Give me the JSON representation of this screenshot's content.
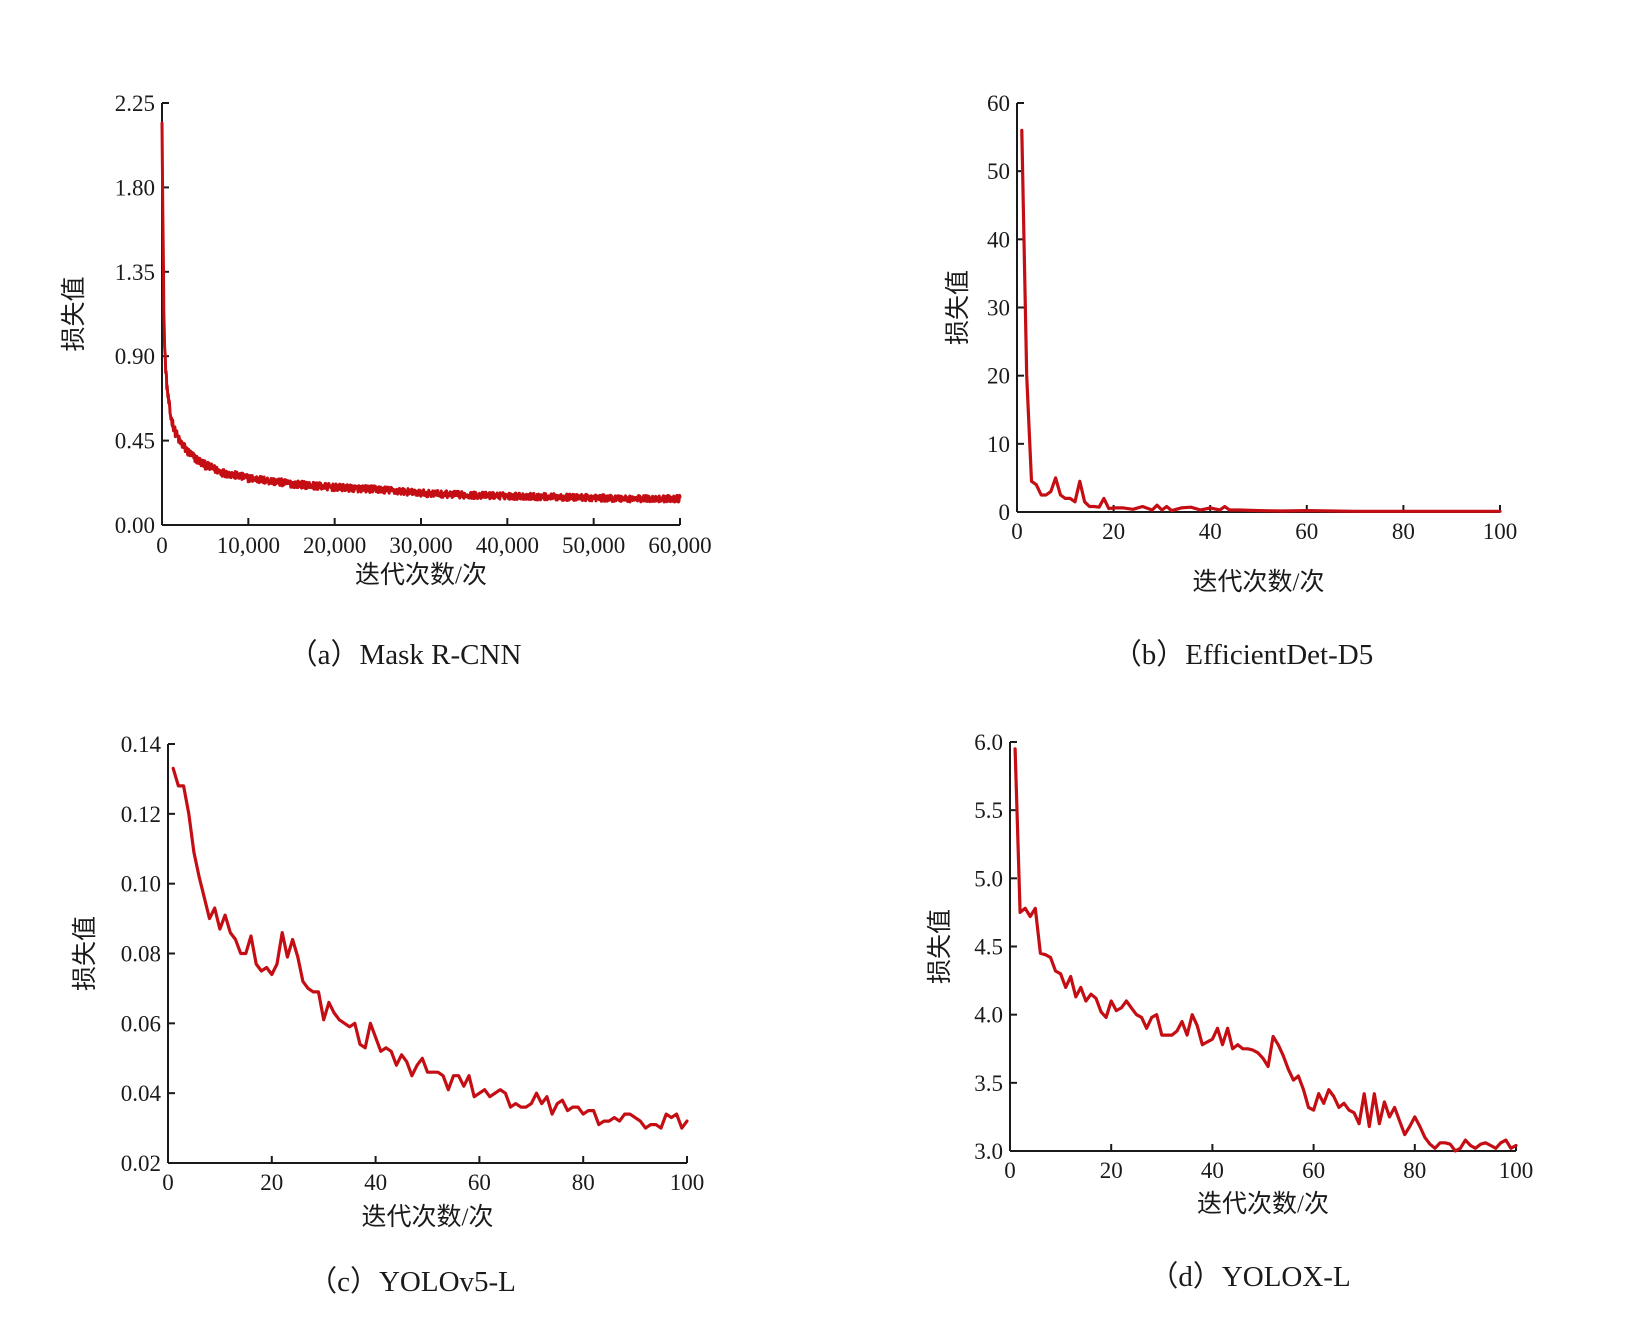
{
  "chart_data": [
    {
      "type": "line",
      "caption": "（a）Mask R-CNN",
      "xlabel": "迭代次数/次",
      "ylabel": "损失值",
      "xlim": [
        0,
        60000
      ],
      "ylim": [
        0,
        2.25
      ],
      "xticks": [
        0,
        10000,
        20000,
        30000,
        40000,
        50000,
        60000
      ],
      "xtick_labels": [
        "0",
        "10,000",
        "20,000",
        "30,000",
        "40,000",
        "50,000",
        "60,000"
      ],
      "yticks": [
        0,
        0.45,
        0.9,
        1.35,
        1.8,
        2.25
      ],
      "ytick_labels": [
        "0.00",
        "0.45",
        "0.90",
        "1.35",
        "1.80",
        "2.25"
      ],
      "line_color": "#c40e14",
      "noise": 0.025,
      "series": [
        {
          "x": [
            0,
            100,
            200,
            300,
            500,
            700,
            1000,
            1500,
            2000,
            3000,
            4000,
            5000,
            7000,
            10000,
            15000,
            20000,
            25000,
            30000,
            35000,
            40000,
            45000,
            50000,
            55000,
            60000
          ],
          "values": [
            2.2,
            1.65,
            1.2,
            0.95,
            0.78,
            0.68,
            0.58,
            0.5,
            0.45,
            0.39,
            0.35,
            0.32,
            0.28,
            0.25,
            0.22,
            0.2,
            0.19,
            0.17,
            0.16,
            0.155,
            0.15,
            0.145,
            0.14,
            0.14
          ]
        }
      ]
    },
    {
      "type": "line",
      "caption": "（b）EfficientDet-D5",
      "xlabel": "迭代次数/次",
      "ylabel": "损失值",
      "xlim": [
        0,
        100
      ],
      "ylim": [
        0,
        60
      ],
      "xticks": [
        0,
        20,
        40,
        60,
        80,
        100
      ],
      "xtick_labels": [
        "0",
        "20",
        "40",
        "60",
        "80",
        "100"
      ],
      "yticks": [
        0,
        10,
        20,
        30,
        40,
        50,
        60
      ],
      "ytick_labels": [
        "0",
        "10",
        "20",
        "30",
        "40",
        "50",
        "60"
      ],
      "line_color": "#c40e14",
      "noise": 0,
      "series": [
        {
          "x": [
            1,
            2,
            3,
            4,
            5,
            6,
            7,
            8,
            9,
            10,
            11,
            12,
            13,
            14,
            15,
            16,
            17,
            18,
            19,
            20,
            22,
            24,
            26,
            28,
            29,
            30,
            31,
            32,
            34,
            36,
            38,
            40,
            42,
            43,
            44,
            46,
            50,
            55,
            60,
            70,
            80,
            90,
            100
          ],
          "values": [
            56,
            20,
            4.5,
            4.0,
            2.5,
            2.5,
            3.0,
            5.0,
            2.5,
            2.0,
            2.0,
            1.5,
            4.5,
            1.5,
            0.8,
            0.8,
            0.7,
            2.0,
            0.5,
            0.6,
            0.6,
            0.4,
            0.8,
            0.3,
            1.0,
            0.3,
            0.8,
            0.2,
            0.6,
            0.7,
            0.3,
            0.6,
            0.3,
            0.8,
            0.3,
            0.3,
            0.2,
            0.15,
            0.2,
            0.1,
            0.1,
            0.1,
            0.1
          ]
        }
      ]
    },
    {
      "type": "line",
      "caption": "（c）YOLOv5-L",
      "xlabel": "迭代次数/次",
      "ylabel": "损失值",
      "xlim": [
        0,
        100
      ],
      "ylim": [
        0.02,
        0.14
      ],
      "xticks": [
        0,
        20,
        40,
        60,
        80,
        100
      ],
      "xtick_labels": [
        "0",
        "20",
        "40",
        "60",
        "80",
        "100"
      ],
      "yticks": [
        0.02,
        0.04,
        0.06,
        0.08,
        0.1,
        0.12,
        0.14
      ],
      "ytick_labels": [
        "0.02",
        "0.04",
        "0.06",
        "0.08",
        "0.10",
        "0.12",
        "0.14"
      ],
      "line_color": "#c40e14",
      "noise": 0,
      "series": [
        {
          "x": [
            1,
            2,
            3,
            4,
            5,
            6,
            7,
            8,
            9,
            10,
            11,
            12,
            13,
            14,
            15,
            16,
            17,
            18,
            19,
            20,
            21,
            22,
            23,
            24,
            25,
            26,
            27,
            28,
            29,
            30,
            31,
            32,
            33,
            34,
            35,
            36,
            37,
            38,
            39,
            40,
            41,
            42,
            43,
            44,
            45,
            46,
            47,
            48,
            49,
            50,
            51,
            52,
            53,
            54,
            55,
            56,
            57,
            58,
            59,
            60,
            61,
            62,
            63,
            64,
            65,
            66,
            67,
            68,
            69,
            70,
            71,
            72,
            73,
            74,
            75,
            76,
            77,
            78,
            79,
            80,
            81,
            82,
            83,
            84,
            85,
            86,
            87,
            88,
            89,
            90,
            91,
            92,
            93,
            94,
            95,
            96,
            97,
            98,
            99,
            100
          ],
          "values": [
            0.133,
            0.128,
            0.128,
            0.12,
            0.109,
            0.102,
            0.096,
            0.09,
            0.093,
            0.087,
            0.091,
            0.086,
            0.084,
            0.08,
            0.08,
            0.085,
            0.077,
            0.075,
            0.076,
            0.074,
            0.077,
            0.086,
            0.079,
            0.084,
            0.079,
            0.072,
            0.07,
            0.069,
            0.069,
            0.061,
            0.066,
            0.063,
            0.061,
            0.06,
            0.059,
            0.06,
            0.054,
            0.053,
            0.06,
            0.056,
            0.052,
            0.053,
            0.052,
            0.048,
            0.051,
            0.049,
            0.045,
            0.048,
            0.05,
            0.046,
            0.046,
            0.046,
            0.045,
            0.041,
            0.045,
            0.045,
            0.042,
            0.045,
            0.039,
            0.04,
            0.041,
            0.039,
            0.04,
            0.041,
            0.04,
            0.036,
            0.037,
            0.036,
            0.036,
            0.037,
            0.04,
            0.037,
            0.039,
            0.034,
            0.037,
            0.038,
            0.035,
            0.036,
            0.036,
            0.034,
            0.035,
            0.035,
            0.031,
            0.032,
            0.032,
            0.033,
            0.032,
            0.034,
            0.034,
            0.033,
            0.032,
            0.03,
            0.031,
            0.031,
            0.03,
            0.034,
            0.033,
            0.034,
            0.03,
            0.032
          ]
        }
      ]
    },
    {
      "type": "line",
      "caption": "（d）YOLOX-L",
      "xlabel": "迭代次数/次",
      "ylabel": "损失值",
      "xlim": [
        0,
        100
      ],
      "ylim": [
        3.0,
        6.0
      ],
      "xticks": [
        0,
        20,
        40,
        60,
        80,
        100
      ],
      "xtick_labels": [
        "0",
        "20",
        "40",
        "60",
        "80",
        "100"
      ],
      "yticks": [
        3.0,
        3.5,
        4.0,
        4.5,
        5.0,
        5.5,
        6.0
      ],
      "ytick_labels": [
        "3.0",
        "3.5",
        "4.0",
        "4.5",
        "5.0",
        "5.5",
        "6.0"
      ],
      "line_color": "#c40e14",
      "noise": 0,
      "series": [
        {
          "x": [
            1,
            2,
            3,
            4,
            5,
            6,
            7,
            8,
            9,
            10,
            11,
            12,
            13,
            14,
            15,
            16,
            17,
            18,
            19,
            20,
            21,
            22,
            23,
            24,
            25,
            26,
            27,
            28,
            29,
            30,
            31,
            32,
            33,
            34,
            35,
            36,
            37,
            38,
            39,
            40,
            41,
            42,
            43,
            44,
            45,
            46,
            47,
            48,
            49,
            50,
            51,
            52,
            53,
            54,
            55,
            56,
            57,
            58,
            59,
            60,
            61,
            62,
            63,
            64,
            65,
            66,
            67,
            68,
            69,
            70,
            71,
            72,
            73,
            74,
            75,
            76,
            77,
            78,
            79,
            80,
            81,
            82,
            83,
            84,
            85,
            86,
            87,
            88,
            89,
            90,
            91,
            92,
            93,
            94,
            95,
            96,
            97,
            98,
            99,
            100
          ],
          "values": [
            5.95,
            4.75,
            4.78,
            4.72,
            4.78,
            4.45,
            4.44,
            4.42,
            4.32,
            4.3,
            4.2,
            4.28,
            4.13,
            4.2,
            4.1,
            4.15,
            4.12,
            4.02,
            3.98,
            4.1,
            4.03,
            4.05,
            4.1,
            4.05,
            4.0,
            3.98,
            3.9,
            3.98,
            4.0,
            3.85,
            3.85,
            3.85,
            3.88,
            3.95,
            3.85,
            4.0,
            3.92,
            3.78,
            3.8,
            3.82,
            3.9,
            3.78,
            3.9,
            3.75,
            3.78,
            3.75,
            3.75,
            3.74,
            3.72,
            3.68,
            3.62,
            3.84,
            3.78,
            3.7,
            3.6,
            3.52,
            3.55,
            3.45,
            3.32,
            3.3,
            3.42,
            3.35,
            3.45,
            3.4,
            3.32,
            3.35,
            3.3,
            3.28,
            3.2,
            3.42,
            3.18,
            3.42,
            3.2,
            3.36,
            3.25,
            3.32,
            3.22,
            3.12,
            3.18,
            3.25,
            3.18,
            3.1,
            3.05,
            3.02,
            3.06,
            3.06,
            3.05,
            3.0,
            3.02,
            3.08,
            3.04,
            3.02,
            3.05,
            3.06,
            3.04,
            3.02,
            3.06,
            3.08,
            3.02,
            3.04
          ]
        }
      ]
    }
  ]
}
